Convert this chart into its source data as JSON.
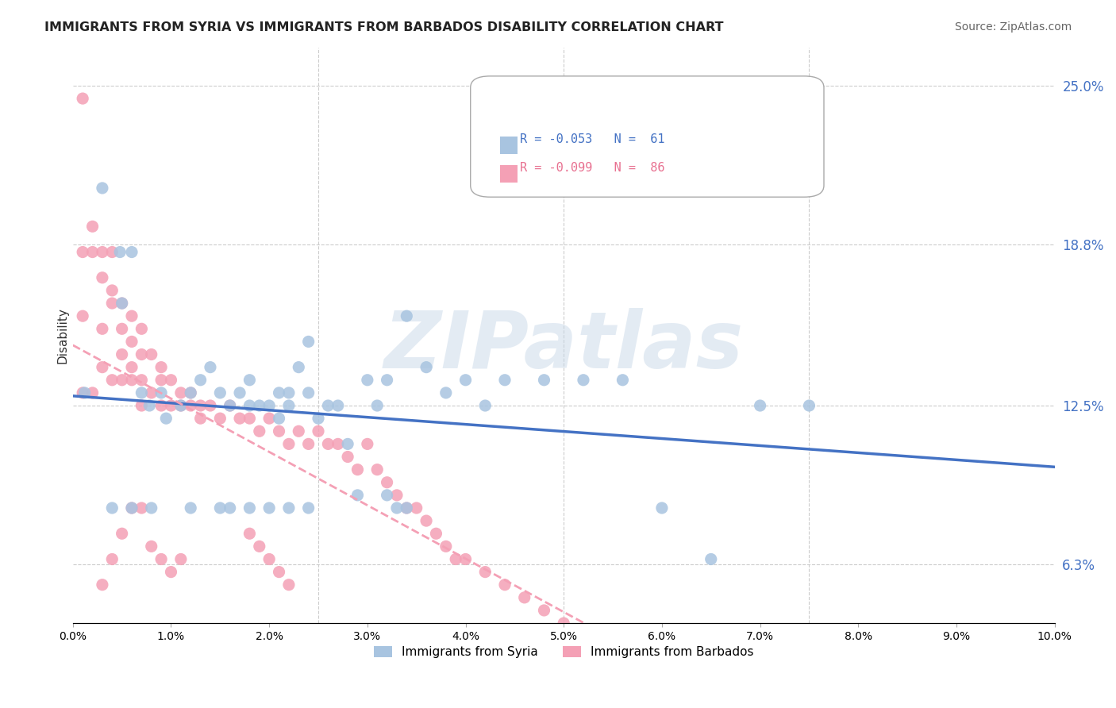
{
  "title": "IMMIGRANTS FROM SYRIA VS IMMIGRANTS FROM BARBADOS DISABILITY CORRELATION CHART",
  "source": "Source: ZipAtlas.com",
  "xlabel_bottom": "",
  "ylabel": "Disability",
  "x_min": 0.0,
  "x_max": 0.1,
  "y_min": 0.04,
  "y_max": 0.265,
  "right_yticks": [
    0.25,
    0.188,
    0.125,
    0.063
  ],
  "right_yticklabels": [
    "25.0%",
    "18.8%",
    "12.5%",
    "6.3%"
  ],
  "x_ticklabels": [
    "0.0%",
    "",
    "",
    "",
    "",
    "",
    "",
    "",
    "",
    "",
    "10.0%"
  ],
  "legend_r1": "R = -0.053",
  "legend_n1": "N =  61",
  "legend_r2": "R = -0.099",
  "legend_n2": "N =  86",
  "syria_color": "#a8c4e0",
  "barbados_color": "#f4a0b5",
  "trend_syria_color": "#4472c4",
  "trend_barbados_color": "#f4a0b5",
  "label_syria": "Immigrants from Syria",
  "label_barbados": "Immigrants from Barbados",
  "watermark": "ZIPatlas",
  "watermark_color": "#c8d8e8",
  "syria_x": [
    0.0012,
    0.003,
    0.0048,
    0.005,
    0.006,
    0.007,
    0.0078,
    0.009,
    0.0095,
    0.011,
    0.012,
    0.013,
    0.014,
    0.015,
    0.016,
    0.017,
    0.018,
    0.018,
    0.019,
    0.02,
    0.021,
    0.021,
    0.022,
    0.022,
    0.023,
    0.024,
    0.024,
    0.025,
    0.026,
    0.027,
    0.028,
    0.029,
    0.03,
    0.031,
    0.032,
    0.034,
    0.036,
    0.038,
    0.04,
    0.042,
    0.044,
    0.048,
    0.052,
    0.056,
    0.06,
    0.065,
    0.07,
    0.075,
    0.032,
    0.033,
    0.034,
    0.02,
    0.022,
    0.024,
    0.015,
    0.016,
    0.018,
    0.012,
    0.008,
    0.006,
    0.004
  ],
  "syria_y": [
    0.13,
    0.21,
    0.185,
    0.165,
    0.185,
    0.13,
    0.125,
    0.13,
    0.12,
    0.125,
    0.13,
    0.135,
    0.14,
    0.13,
    0.125,
    0.13,
    0.135,
    0.125,
    0.125,
    0.125,
    0.13,
    0.12,
    0.125,
    0.13,
    0.14,
    0.15,
    0.13,
    0.12,
    0.125,
    0.125,
    0.11,
    0.09,
    0.135,
    0.125,
    0.135,
    0.16,
    0.14,
    0.13,
    0.135,
    0.125,
    0.135,
    0.135,
    0.135,
    0.135,
    0.085,
    0.065,
    0.125,
    0.125,
    0.09,
    0.085,
    0.085,
    0.085,
    0.085,
    0.085,
    0.085,
    0.085,
    0.085,
    0.085,
    0.085,
    0.085,
    0.085
  ],
  "barbados_x": [
    0.001,
    0.001,
    0.001,
    0.001,
    0.002,
    0.002,
    0.002,
    0.003,
    0.003,
    0.003,
    0.003,
    0.004,
    0.004,
    0.004,
    0.004,
    0.005,
    0.005,
    0.005,
    0.005,
    0.006,
    0.006,
    0.006,
    0.006,
    0.007,
    0.007,
    0.007,
    0.007,
    0.008,
    0.008,
    0.009,
    0.009,
    0.009,
    0.01,
    0.01,
    0.011,
    0.011,
    0.012,
    0.012,
    0.013,
    0.013,
    0.014,
    0.015,
    0.016,
    0.017,
    0.018,
    0.019,
    0.02,
    0.021,
    0.022,
    0.023,
    0.024,
    0.025,
    0.026,
    0.027,
    0.028,
    0.029,
    0.03,
    0.031,
    0.032,
    0.033,
    0.034,
    0.035,
    0.036,
    0.037,
    0.038,
    0.039,
    0.04,
    0.042,
    0.044,
    0.046,
    0.048,
    0.05,
    0.018,
    0.019,
    0.02,
    0.021,
    0.022,
    0.003,
    0.004,
    0.005,
    0.006,
    0.007,
    0.008,
    0.009,
    0.01,
    0.011
  ],
  "barbados_y": [
    0.245,
    0.185,
    0.16,
    0.13,
    0.195,
    0.185,
    0.13,
    0.185,
    0.175,
    0.155,
    0.14,
    0.185,
    0.17,
    0.165,
    0.135,
    0.165,
    0.155,
    0.145,
    0.135,
    0.16,
    0.15,
    0.14,
    0.135,
    0.155,
    0.145,
    0.135,
    0.125,
    0.145,
    0.13,
    0.14,
    0.135,
    0.125,
    0.135,
    0.125,
    0.13,
    0.125,
    0.13,
    0.125,
    0.125,
    0.12,
    0.125,
    0.12,
    0.125,
    0.12,
    0.12,
    0.115,
    0.12,
    0.115,
    0.11,
    0.115,
    0.11,
    0.115,
    0.11,
    0.11,
    0.105,
    0.1,
    0.11,
    0.1,
    0.095,
    0.09,
    0.085,
    0.085,
    0.08,
    0.075,
    0.07,
    0.065,
    0.065,
    0.06,
    0.055,
    0.05,
    0.045,
    0.04,
    0.075,
    0.07,
    0.065,
    0.06,
    0.055,
    0.055,
    0.065,
    0.075,
    0.085,
    0.085,
    0.07,
    0.065,
    0.06,
    0.065
  ]
}
